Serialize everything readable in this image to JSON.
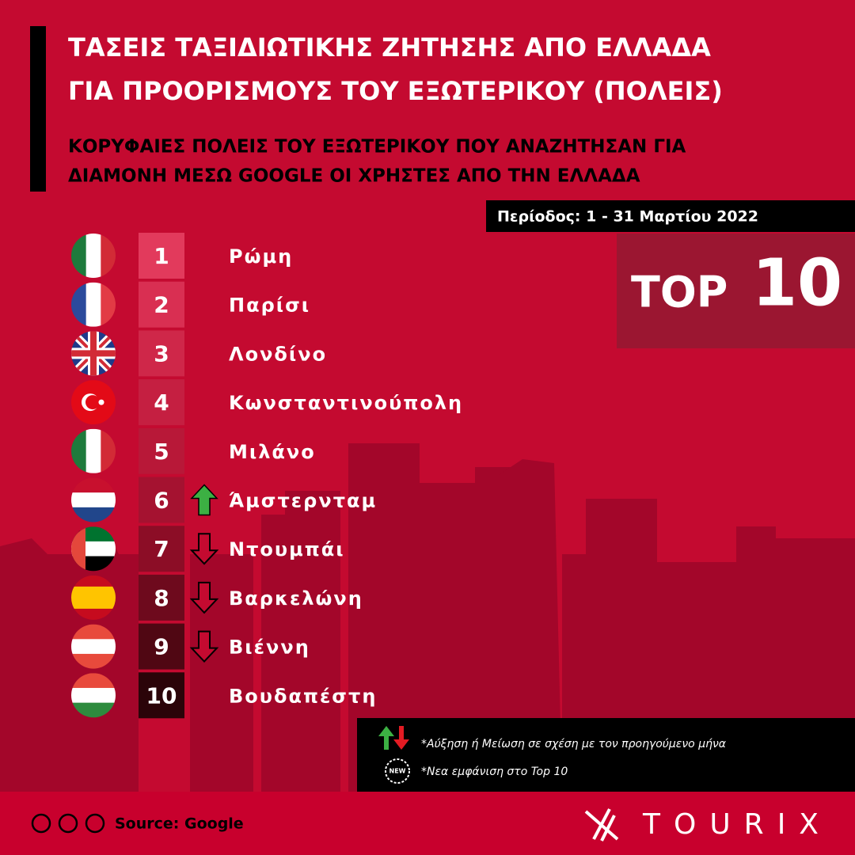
{
  "header": {
    "title": [
      "ΤΑΣΕΙΣ ΤΑΞΙΔΙΩΤΙΚΗΣ ΖΗΤΗΣΗΣ ΑΠΟ ΕΛΛΑΔΑ",
      "ΓΙΑ ΠΡΟΟΡΙΣΜΟΥΣ ΤΟΥ ΕΞΩΤΕΡΙΚΟΥ (ΠΟΛΕΙΣ)"
    ],
    "subtitle": [
      "ΚΟΡΥΦΑΙΕΣ ΠΟΛΕΙΣ ΤΟΥ ΕΞΩΤΕΡΙΚΟΥ ΠΟΥ ΑΝΑΖΗΤΗΣΑΝ ΓΙΑ",
      "ΔΙΑΜΟΝΗ ΜΕΣΩ GOOGLE ΟΙ ΧΡΗΣΤΕΣ ΑΠΟ ΤΗΝ ΕΛΛΑΔΑ"
    ],
    "period": "Περίοδος: 1 - 31 Μαρτίου 2022"
  },
  "badge": {
    "word": "TOP",
    "number": "10"
  },
  "items": [
    {
      "rank": 1,
      "city": "Ρώμη",
      "trend": null
    },
    {
      "rank": 2,
      "city": "Παρίσι",
      "trend": null
    },
    {
      "rank": 3,
      "city": "Λονδίνο",
      "trend": null
    },
    {
      "rank": 4,
      "city": "Κωνσταντινούπολη",
      "trend": null
    },
    {
      "rank": 5,
      "city": "Μιλάνο",
      "trend": null
    },
    {
      "rank": 6,
      "city": "Άμστερνταμ",
      "trend": "up"
    },
    {
      "rank": 7,
      "city": "Ντουμπάι",
      "trend": "down"
    },
    {
      "rank": 8,
      "city": "Βαρκελώνη",
      "trend": "down"
    },
    {
      "rank": 9,
      "city": "Βιέννη",
      "trend": "down"
    },
    {
      "rank": 10,
      "city": "Βουδαπέστη",
      "trend": null
    }
  ],
  "legend": {
    "change": "*Αύξηση ή Μείωση σε σχέση με τον προηγούμενο μήνα",
    "new_icon": "NEW",
    "new": "*Νεα εμφάνιση στο Top 10"
  },
  "footer": {
    "source": "Source: Google",
    "brand": "TOURIX"
  }
}
